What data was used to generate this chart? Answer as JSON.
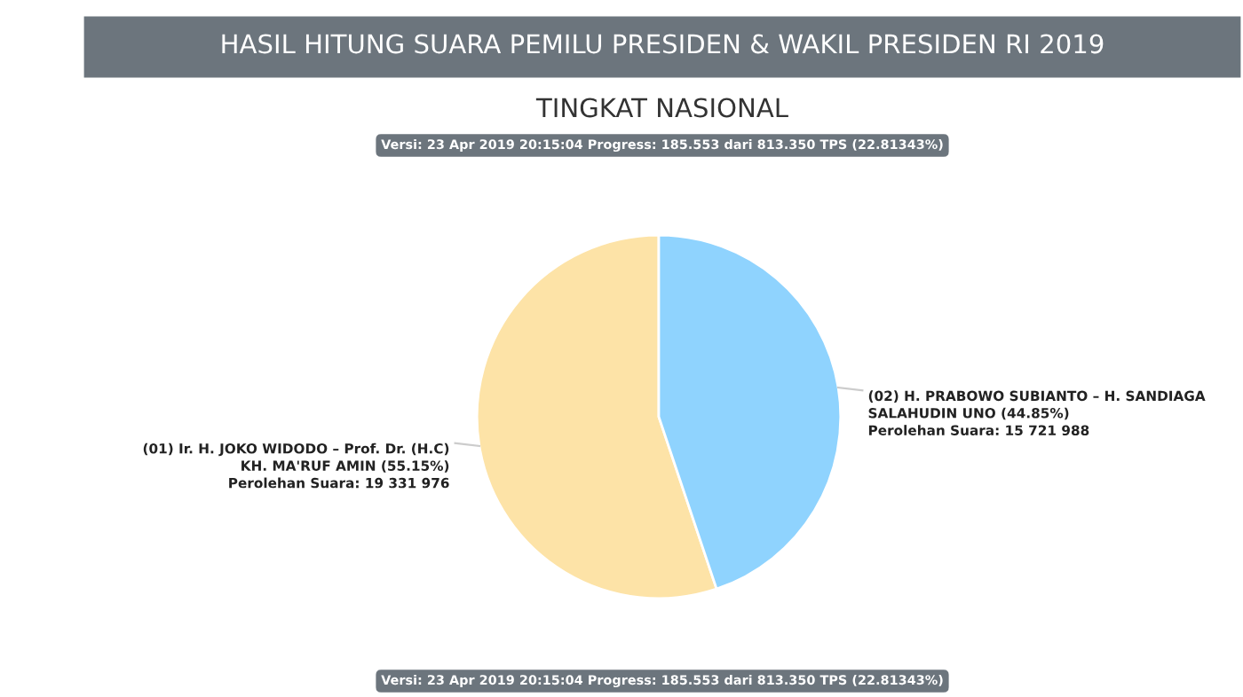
{
  "chart_data": {
    "type": "pie",
    "title": "HASIL HITUNG SUARA PEMILU PRESIDEN & WAKIL PRESIDEN RI 2019",
    "subtitle": "TINGKAT NASIONAL",
    "categories": [
      "(01) Ir. H. JOKO WIDODO – Prof. Dr. (H.C)\nKH. MA'RUF AMIN (55.15%)",
      "(02) H. PRABOWO SUBIANTO – H. SANDIAGA\nSALAHUDIN UNO (44.85%)"
    ],
    "values": [
      19331976,
      15721988
    ],
    "value_labels": [
      "Perolehan Suara: 19 331 976",
      "Perolehan Suara: 15 721 988"
    ],
    "colors": [
      "#fde3a7",
      "#8fd3fe"
    ],
    "annotations": [
      "Versi: 23 Apr 2019 20:15:04 Progress: 185.553 dari 813.350 TPS (22.81343%)",
      "Versi: 23 Apr 2019 20:15:04 Progress: 185.553 dari 813.350 TPS (22.81343%)"
    ],
    "legend": false
  }
}
